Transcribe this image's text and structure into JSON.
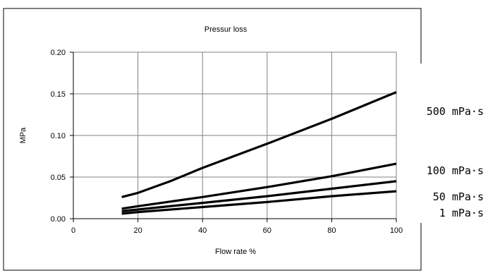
{
  "chart_data": {
    "type": "line",
    "title": "Pressur loss",
    "xlabel": "Flow rate %",
    "ylabel": "MPa",
    "xlim": [
      0,
      100
    ],
    "ylim": [
      0,
      0.2
    ],
    "x_ticks": [
      0,
      20,
      40,
      60,
      80,
      100
    ],
    "x_tick_labels": [
      "0",
      "20",
      "40",
      "60",
      "80",
      "100"
    ],
    "y_ticks": [
      0,
      0.05,
      0.1,
      0.15,
      0.2
    ],
    "y_tick_labels": [
      "0.00",
      "0.05",
      "0.10",
      "0.15",
      "0.20"
    ],
    "grid": true,
    "legend": "series labels placed to the right of the plot",
    "line_color": "#000000",
    "series": [
      {
        "name": "500 mPa·s",
        "x": [
          15,
          20,
          30,
          40,
          60,
          80,
          100
        ],
        "y": [
          0.026,
          0.031,
          0.045,
          0.061,
          0.09,
          0.12,
          0.152
        ]
      },
      {
        "name": "100 mPa·s",
        "x": [
          15,
          20,
          40,
          60,
          80,
          100
        ],
        "y": [
          0.012,
          0.015,
          0.026,
          0.038,
          0.051,
          0.066
        ]
      },
      {
        "name": "50 mPa·s",
        "x": [
          15,
          20,
          40,
          60,
          80,
          100
        ],
        "y": [
          0.009,
          0.011,
          0.019,
          0.027,
          0.036,
          0.045
        ]
      },
      {
        "name": "1 mPa·s",
        "x": [
          15,
          20,
          40,
          60,
          80,
          100
        ],
        "y": [
          0.006,
          0.008,
          0.014,
          0.02,
          0.027,
          0.033
        ]
      }
    ]
  }
}
